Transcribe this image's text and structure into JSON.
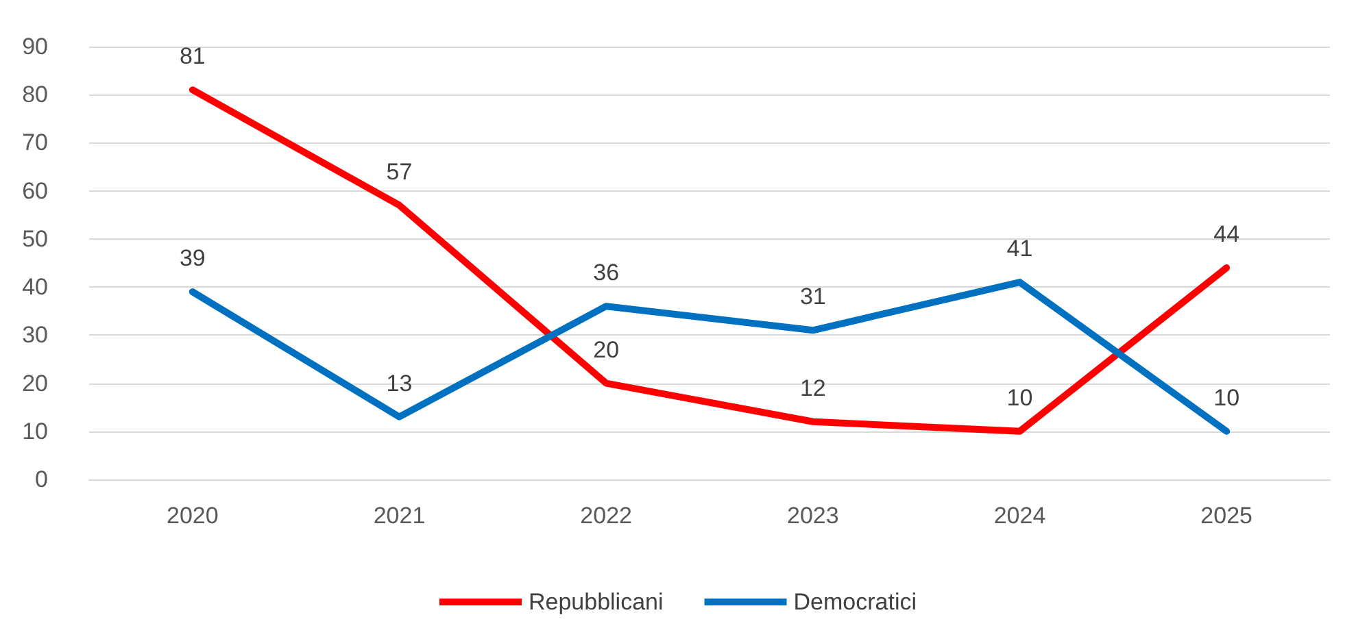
{
  "chart_data": {
    "type": "line",
    "categories": [
      "2020",
      "2021",
      "2022",
      "2023",
      "2024",
      "2025"
    ],
    "series": [
      {
        "name": "Repubblicani",
        "color": "#ff0000",
        "values": [
          81,
          57,
          20,
          12,
          10,
          44
        ]
      },
      {
        "name": "Democratici",
        "color": "#0070c0",
        "values": [
          39,
          13,
          36,
          31,
          41,
          10
        ]
      }
    ],
    "ylim": [
      0,
      90
    ],
    "yticks": [
      0,
      10,
      20,
      30,
      40,
      50,
      60,
      70,
      80,
      90
    ],
    "grid": "y",
    "legend": "bottom",
    "marker": "none",
    "data_labels": true
  }
}
